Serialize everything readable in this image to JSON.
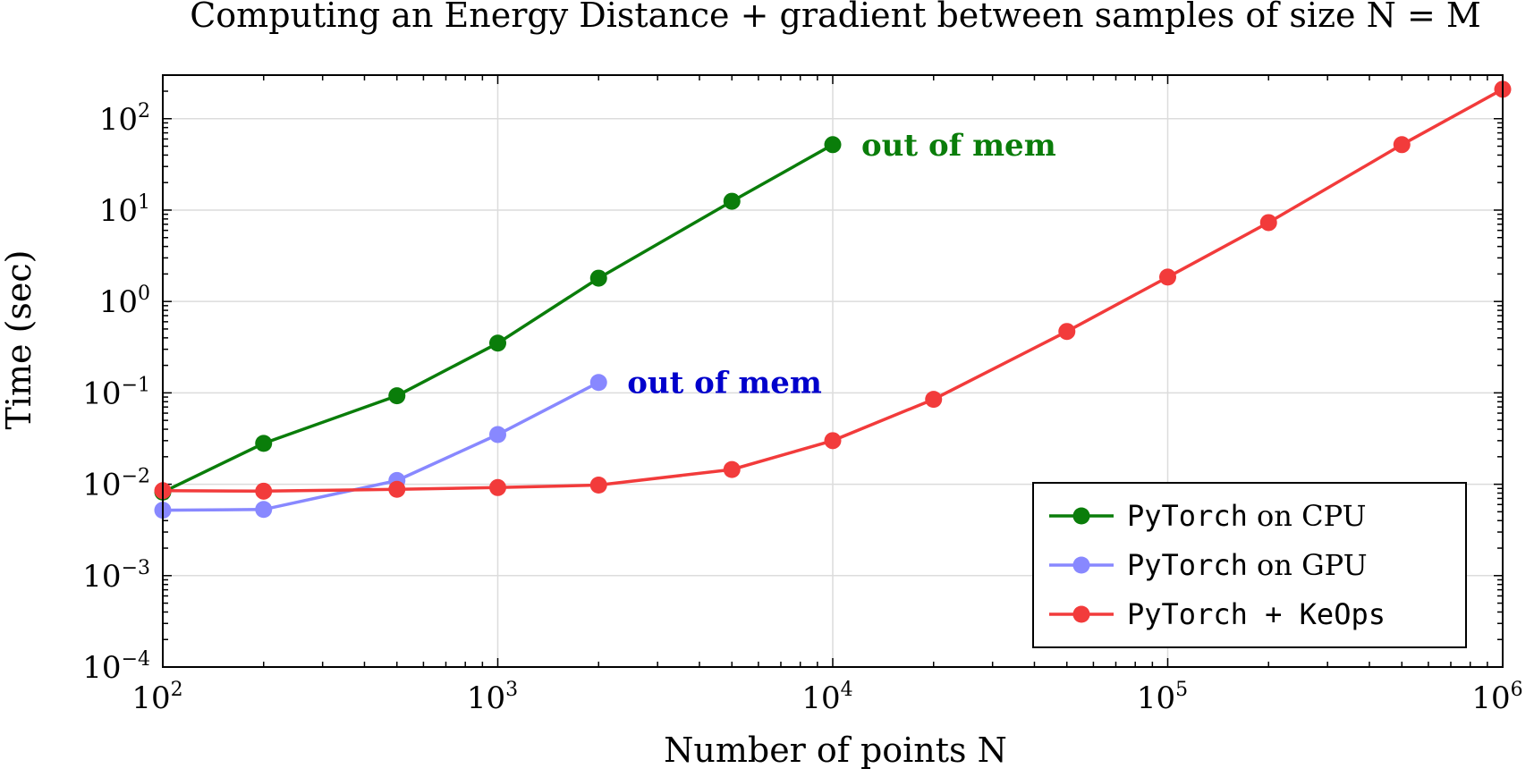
{
  "chart_data": {
    "type": "line",
    "title": "Computing an Energy Distance + gradient between samples of size N = M",
    "xlabel": "Number of points N",
    "ylabel": "Time (sec)",
    "x_scale": "log",
    "y_scale": "log",
    "xlim": [
      100,
      1000000
    ],
    "ylim": [
      0.0001,
      300
    ],
    "grid": true,
    "legend_position": "bottom-right",
    "x_ticks": [
      {
        "value": 100,
        "base": "10",
        "exp": "2"
      },
      {
        "value": 1000,
        "base": "10",
        "exp": "3"
      },
      {
        "value": 10000,
        "base": "10",
        "exp": "4"
      },
      {
        "value": 100000,
        "base": "10",
        "exp": "5"
      },
      {
        "value": 1000000,
        "base": "10",
        "exp": "6"
      }
    ],
    "y_ticks": [
      {
        "value": 0.0001,
        "base": "10",
        "exp": "−4"
      },
      {
        "value": 0.001,
        "base": "10",
        "exp": "−3"
      },
      {
        "value": 0.01,
        "base": "10",
        "exp": "−2"
      },
      {
        "value": 0.1,
        "base": "10",
        "exp": "−1"
      },
      {
        "value": 1,
        "base": "10",
        "exp": "0"
      },
      {
        "value": 10,
        "base": "10",
        "exp": "1"
      },
      {
        "value": 100,
        "base": "10",
        "exp": "2"
      }
    ],
    "series": [
      {
        "name_mono": "PyTorch",
        "name_rest": " on CPU",
        "color": "#0a7d0a",
        "x": [
          100,
          200,
          500,
          1000,
          2000,
          5000,
          10000
        ],
        "y": [
          0.0082,
          0.028,
          0.093,
          0.35,
          1.8,
          12.5,
          52
        ]
      },
      {
        "name_mono": "PyTorch",
        "name_rest": " on GPU",
        "color": "#8888ff",
        "x": [
          100,
          200,
          500,
          1000,
          2000
        ],
        "y": [
          0.0052,
          0.0053,
          0.011,
          0.035,
          0.13
        ]
      },
      {
        "name_mono": "PyTorch + KeOps",
        "name_rest": "",
        "color": "#f23b3b",
        "x": [
          100,
          200,
          500,
          1000,
          2000,
          5000,
          10000,
          20000,
          50000,
          100000,
          200000,
          500000,
          1000000
        ],
        "y": [
          0.0085,
          0.0084,
          0.0088,
          0.0092,
          0.0098,
          0.0145,
          0.03,
          0.085,
          0.47,
          1.85,
          7.3,
          52,
          210
        ]
      }
    ],
    "annotations": [
      {
        "text": "out of mem",
        "color": "#0a7d0a",
        "x": 10000,
        "y": 52
      },
      {
        "text": "out of mem",
        "color": "#0000cc",
        "x": 2000,
        "y": 0.13
      }
    ]
  }
}
